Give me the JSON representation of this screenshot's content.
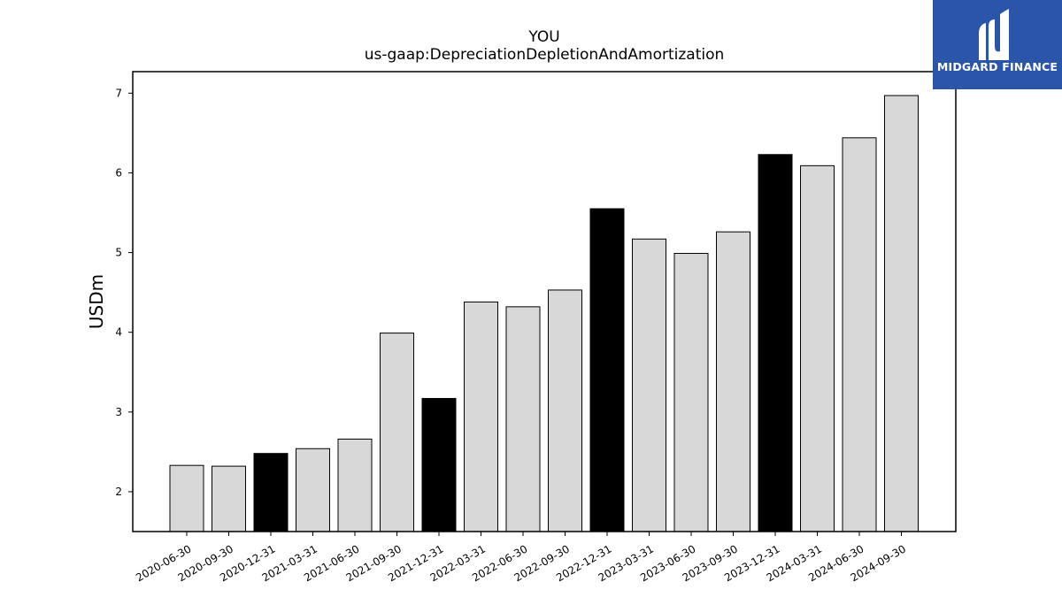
{
  "chart_data": {
    "type": "bar",
    "title": "YOU",
    "subtitle": "us-gaap:DepreciationDepletionAndAmortization",
    "xlabel": "",
    "ylabel": "USDm",
    "ylim": [
      1.5,
      7.27
    ],
    "yticks": [
      2,
      3,
      4,
      5,
      6,
      7
    ],
    "grid": false,
    "categories": [
      "2020-06-30",
      "2020-09-30",
      "2020-12-31",
      "2021-03-31",
      "2021-06-30",
      "2021-09-30",
      "2021-12-31",
      "2022-03-31",
      "2022-06-30",
      "2022-09-30",
      "2022-12-31",
      "2023-03-31",
      "2023-06-30",
      "2023-09-30",
      "2023-12-31",
      "2024-03-31",
      "2024-06-30",
      "2024-09-30"
    ],
    "values": [
      2.33,
      2.32,
      2.48,
      2.54,
      2.66,
      3.99,
      3.17,
      4.38,
      4.32,
      4.53,
      5.55,
      5.17,
      4.99,
      5.26,
      6.23,
      6.09,
      6.44,
      6.97
    ],
    "highlighted": [
      false,
      false,
      true,
      false,
      false,
      false,
      true,
      false,
      false,
      false,
      true,
      false,
      false,
      false,
      true,
      false,
      false,
      false
    ],
    "colors": {
      "default_bar": "#d8d8d8",
      "highlight_bar": "#000000",
      "edge": "#000000"
    }
  },
  "logo": {
    "text": "MIDGARD FINANCE",
    "background": "#2a55a8"
  }
}
